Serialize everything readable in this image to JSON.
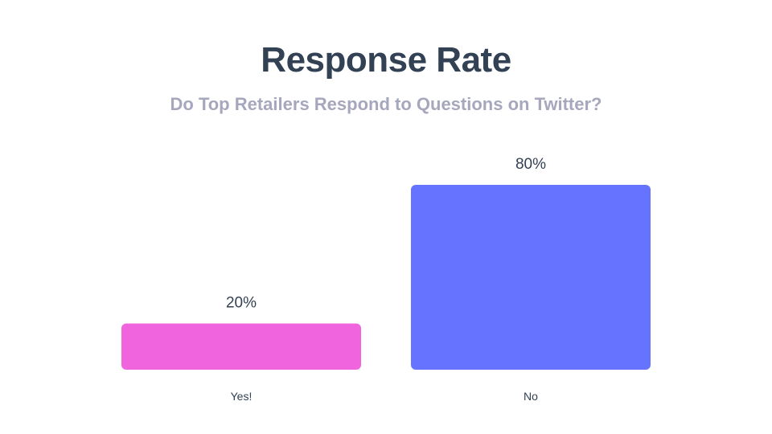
{
  "title": "Response Rate",
  "subtitle": "Do Top Retailers Respond to Questions on Twitter?",
  "chart_data": {
    "type": "bar",
    "categories": [
      "Yes!",
      "No"
    ],
    "values": [
      20,
      80
    ],
    "data_labels": [
      "20%",
      "80%"
    ],
    "colors": [
      "#f065de",
      "#6673ff"
    ],
    "ylim": [
      0,
      80
    ],
    "grid": false,
    "legend": "none",
    "xlabel": "",
    "ylabel": ""
  }
}
